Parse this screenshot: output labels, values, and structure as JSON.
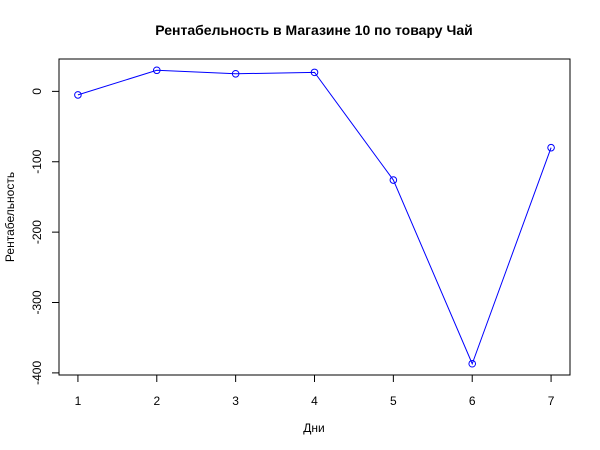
{
  "chart_data": {
    "type": "line",
    "title": "Рентабельность в Магазине 10 по товару Чай",
    "xlabel": "Дни",
    "ylabel": "Рентабельность",
    "x": [
      1,
      2,
      3,
      4,
      5,
      6,
      7
    ],
    "x_ticks": [
      "1",
      "2",
      "3",
      "4",
      "5",
      "6",
      "7"
    ],
    "y_ticks": [
      "0",
      "-100",
      "-200",
      "-300",
      "-400"
    ],
    "series": [
      {
        "values": [
          -5,
          30,
          25,
          27,
          -126,
          -387,
          -80
        ],
        "color": "#0000ff"
      }
    ],
    "xlim": [
      0.76,
      7.24
    ],
    "ylim": [
      -403,
      46
    ],
    "grid": false,
    "legend": "none",
    "marker": "open-circle"
  }
}
